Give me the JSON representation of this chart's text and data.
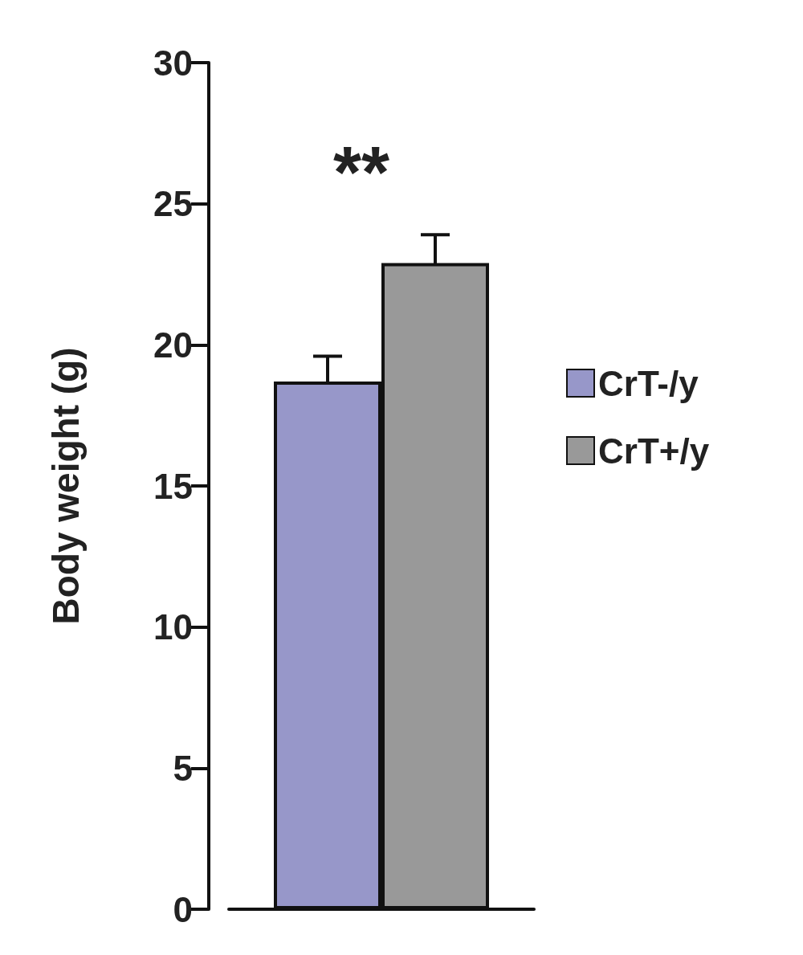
{
  "chart_data": {
    "type": "bar",
    "ylabel": "Body weight (g)",
    "categories": [
      null
    ],
    "series": [
      {
        "name": "CrT-/y",
        "color": "#9797c9",
        "values": [
          18.7
        ],
        "errors": [
          0.9
        ]
      },
      {
        "name": "CrT+/y",
        "color": "#999999",
        "values": [
          22.9
        ],
        "errors": [
          1.0
        ]
      }
    ],
    "ylim": [
      0,
      30
    ],
    "yticks": [
      0,
      5,
      10,
      15,
      20,
      25,
      30
    ],
    "grid": false,
    "legend": "right",
    "annotations": [
      "**"
    ]
  }
}
